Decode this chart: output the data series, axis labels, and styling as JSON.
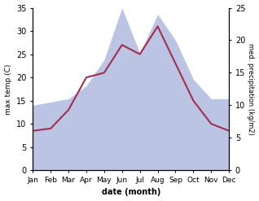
{
  "months": [
    "Jan",
    "Feb",
    "Mar",
    "Apr",
    "May",
    "Jun",
    "Jul",
    "Aug",
    "Sep",
    "Oct",
    "Nov",
    "Dec"
  ],
  "temp": [
    8.5,
    9.0,
    13.0,
    20.0,
    21.0,
    27.0,
    25.0,
    31.0,
    23.0,
    15.0,
    10.0,
    8.5
  ],
  "precip": [
    10.0,
    10.5,
    11.0,
    13.0,
    17.0,
    25.0,
    18.0,
    24.0,
    20.0,
    14.0,
    11.0,
    11.0
  ],
  "temp_color": "#a03050",
  "precip_fill_color": "#bcc4e4",
  "temp_ylim": [
    0,
    35
  ],
  "precip_ylim": [
    0,
    25
  ],
  "temp_yticks": [
    0,
    5,
    10,
    15,
    20,
    25,
    30,
    35
  ],
  "precip_yticks": [
    0,
    5,
    10,
    15,
    20,
    25
  ],
  "ylabel_left": "max temp (C)",
  "ylabel_right": "med. precipitation (kg/m2)",
  "xlabel": "date (month)",
  "figsize": [
    3.18,
    2.47
  ],
  "dpi": 100
}
